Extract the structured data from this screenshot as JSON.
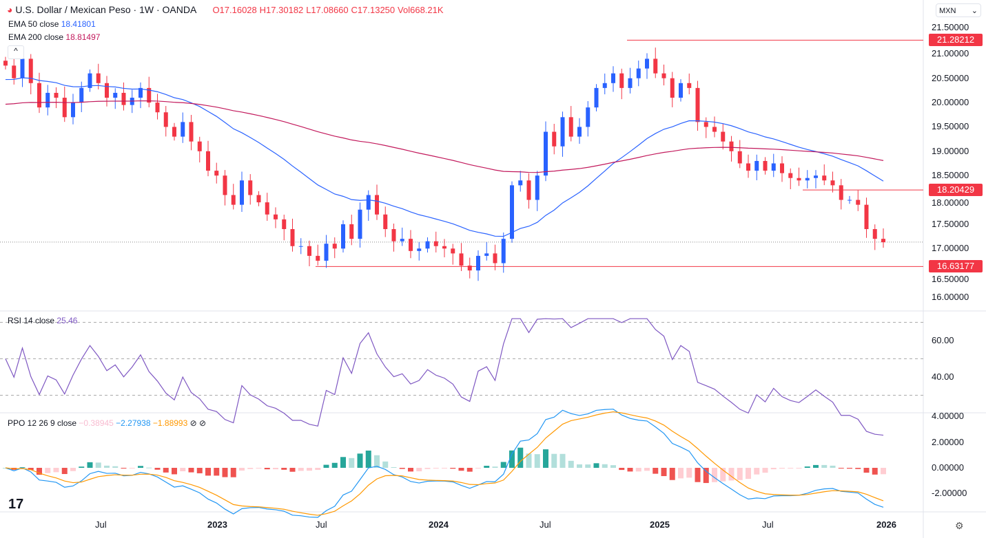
{
  "header": {
    "title": "U.S. Dollar / Mexican Peso · 1W · OANDA",
    "open": "O17.16028",
    "high": "H17.30182",
    "low": "L17.08660",
    "close": "C17.13250",
    "volume": "Vol668.21K"
  },
  "currency_select": "MXN",
  "legend": {
    "ema50_label": "EMA 50 close",
    "ema50_value": "18.41801",
    "ema200_label": "EMA 200 close",
    "ema200_value": "18.81497",
    "rsi_label": "RSI 14 close",
    "rsi_value": "25.46",
    "ppo_label": "PPO 12 26 9 close",
    "ppo_hist": "−0.38945",
    "ppo_line": "−2.27938",
    "ppo_signal": "−1.88993"
  },
  "colors": {
    "up": "#2962ff",
    "down": "#f23645",
    "ema50": "#2962ff",
    "ema200": "#c2185b",
    "rsi": "#7e57c2",
    "ppo": "#2196f3",
    "signal": "#ff9800"
  },
  "chart_data": {
    "type": "candlestick",
    "title": "U.S. Dollar / Mexican Peso · 1W · OANDA",
    "interval": "biweekly approximation",
    "closes": [
      20.76,
      20.5,
      20.9,
      20.4,
      19.9,
      20.2,
      20.1,
      19.7,
      20.0,
      20.3,
      20.6,
      20.4,
      20.1,
      20.2,
      19.95,
      20.1,
      20.3,
      20.0,
      19.8,
      19.5,
      19.3,
      19.6,
      19.2,
      19.0,
      18.6,
      18.5,
      18.1,
      17.9,
      18.4,
      18.1,
      17.95,
      17.7,
      17.6,
      17.4,
      17.05,
      17.05,
      16.85,
      16.75,
      17.1,
      17.0,
      17.5,
      17.2,
      17.8,
      18.1,
      17.7,
      17.4,
      17.15,
      17.2,
      16.95,
      17.0,
      17.15,
      17.05,
      17.0,
      16.9,
      16.65,
      16.55,
      16.85,
      16.9,
      16.7,
      17.2,
      18.3,
      18.4,
      18.0,
      18.5,
      19.4,
      19.1,
      19.7,
      19.3,
      19.5,
      19.9,
      20.3,
      20.4,
      20.6,
      20.3,
      20.5,
      20.7,
      20.9,
      20.6,
      20.5,
      20.1,
      20.4,
      20.3,
      19.6,
      19.5,
      19.4,
      19.2,
      19.0,
      18.75,
      18.6,
      18.8,
      18.6,
      18.75,
      18.55,
      18.45,
      18.4,
      18.45,
      18.5,
      18.4,
      18.3,
      18.0,
      18.0,
      17.9,
      17.4,
      17.2,
      17.13
    ],
    "ema50_seed": 20.45,
    "ema200_seed": 19.95,
    "price_ticks": [
      "21.50000",
      "21.00000",
      "20.50000",
      "20.00000",
      "19.50000",
      "19.00000",
      "18.50000",
      "18.00000",
      "17.50000",
      "17.00000",
      "16.50000",
      "16.00000"
    ],
    "price_ylim": [
      16.0,
      21.5
    ],
    "levels": [
      {
        "label": "21.28212",
        "value": 21.28212
      },
      {
        "label": "18.20429",
        "value": 18.20429
      },
      {
        "label": "16.63177",
        "value": 16.63177
      }
    ],
    "current_price": 17.1325,
    "rsi_ticks": [
      "60.00",
      "40.00"
    ],
    "ppo_ticks": [
      "4.00000",
      "2.00000",
      "0.00000",
      "-2.00000"
    ],
    "x_ticks": [
      "Jul",
      "2023",
      "Jul",
      "2024",
      "Jul",
      "2025",
      "Jul",
      "2026"
    ]
  }
}
